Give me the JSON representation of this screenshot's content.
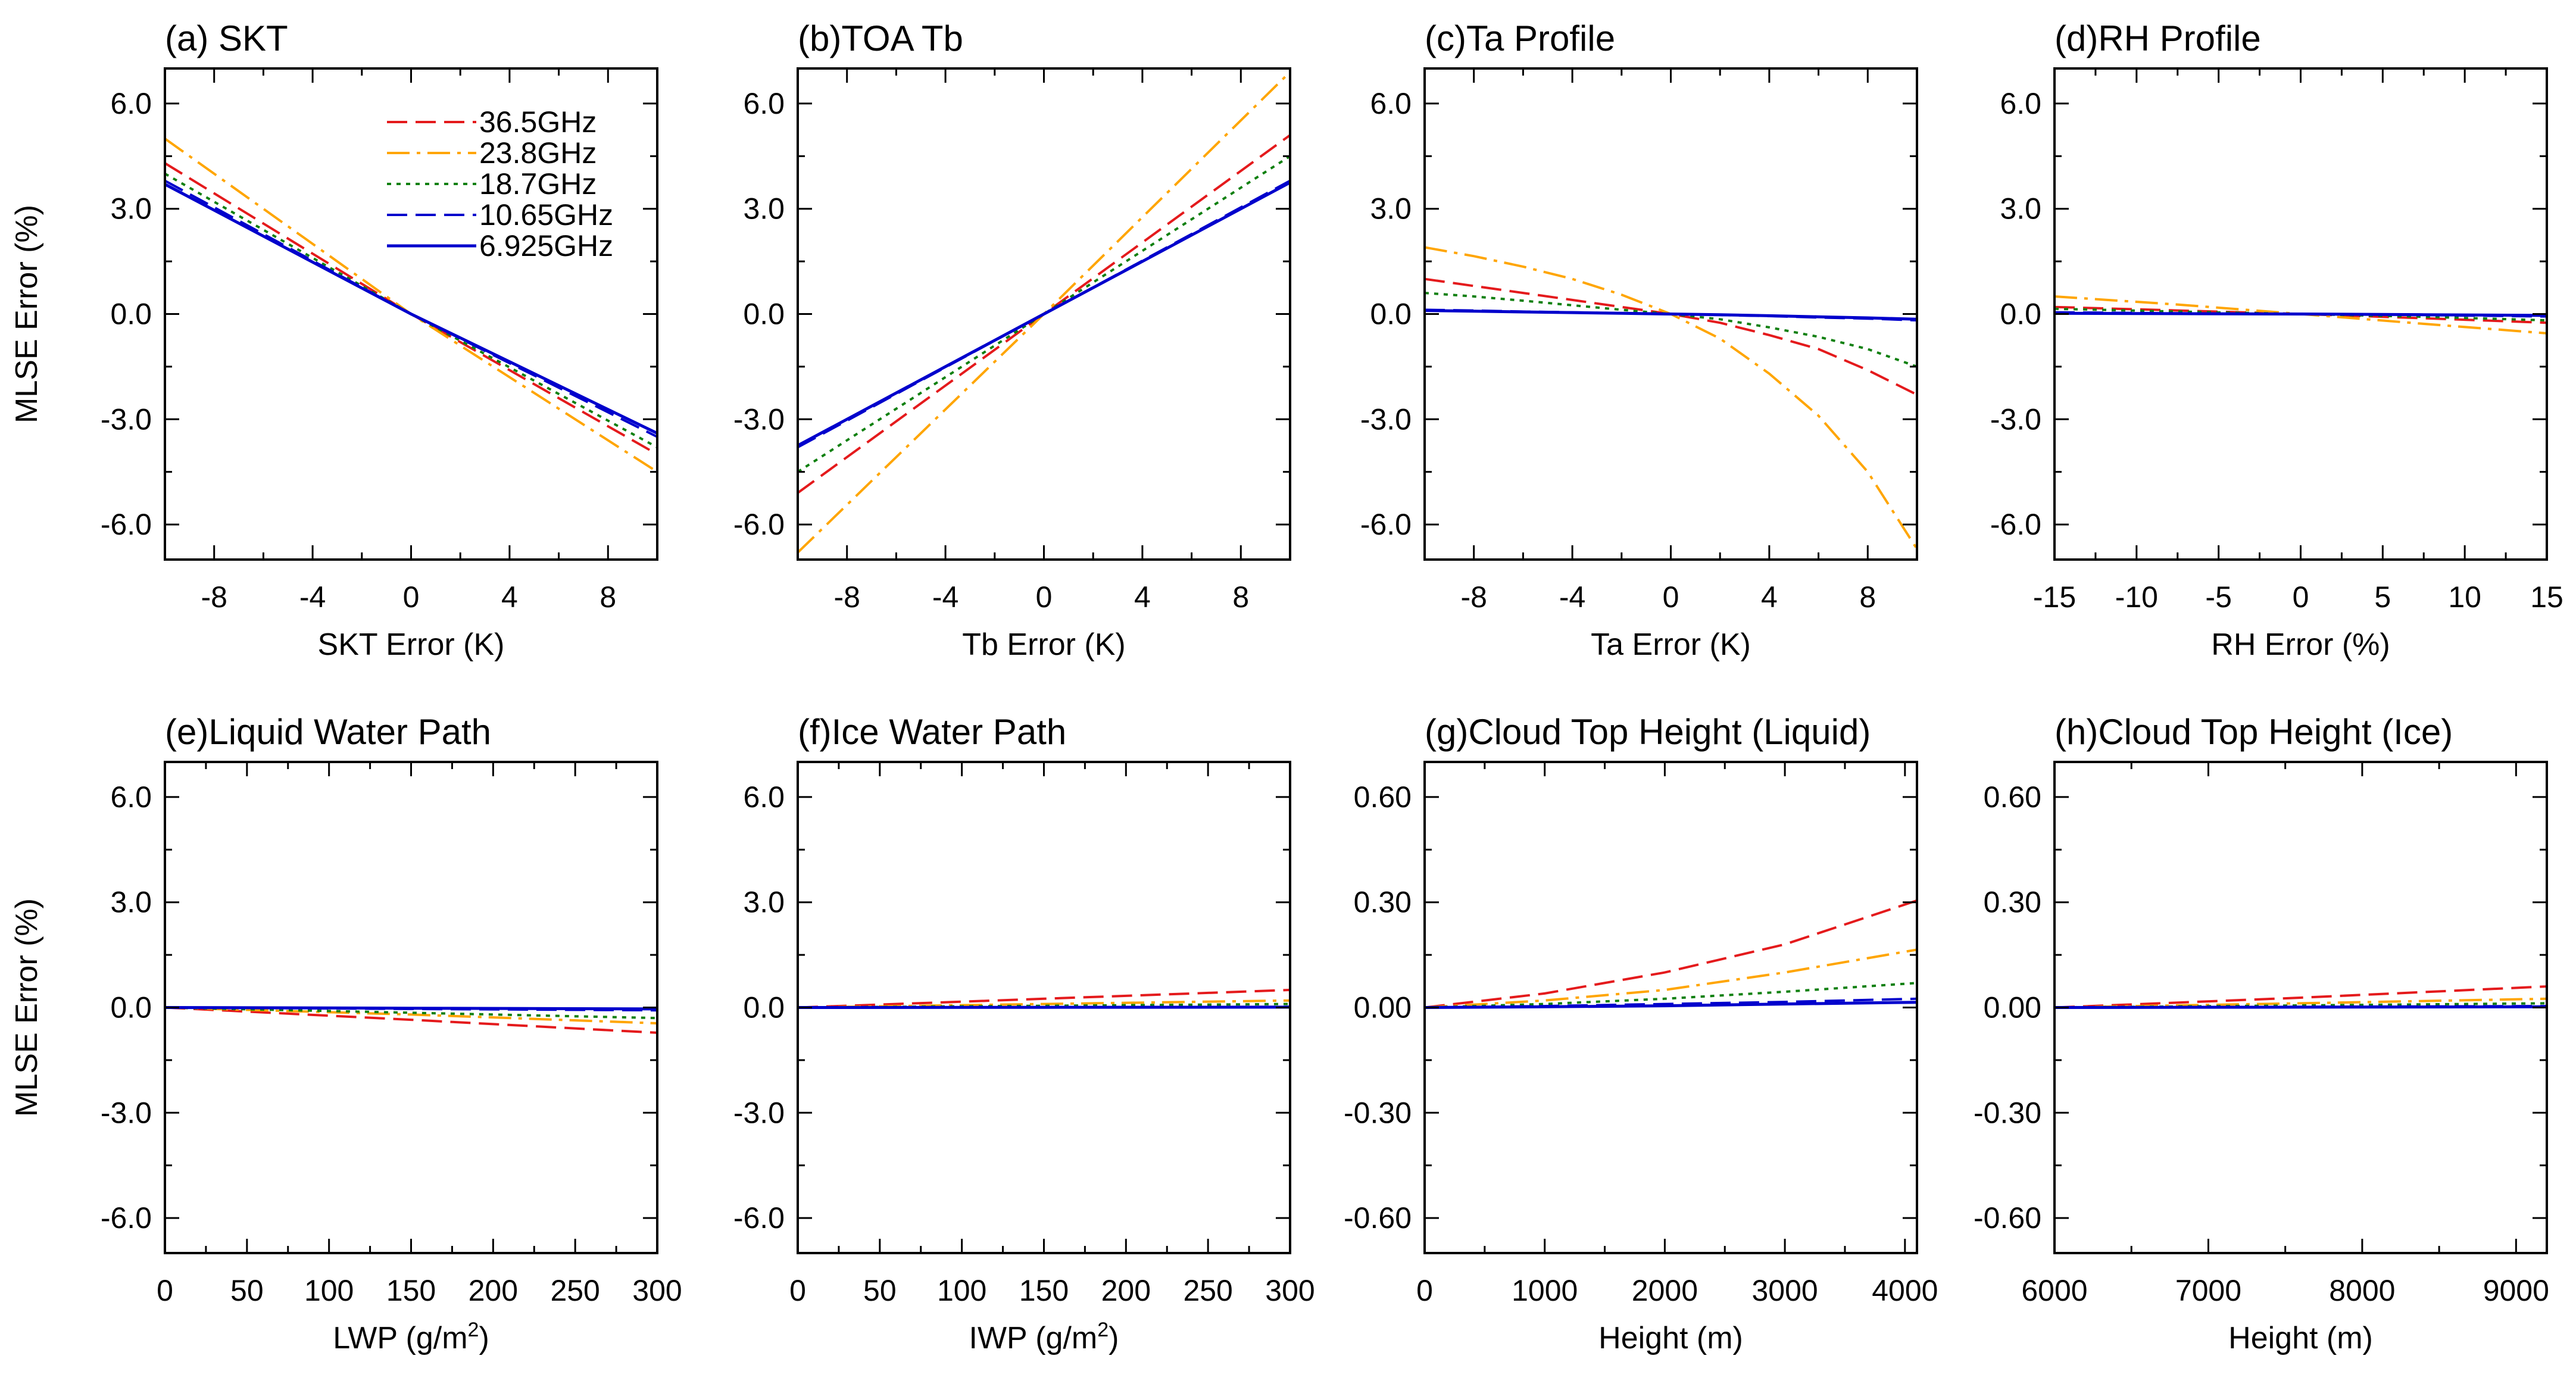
{
  "figure": {
    "legend_panel": "a",
    "legend_location": "top-right"
  },
  "series_styles": [
    {
      "name": "36.5GHz",
      "color": "#e41a1c",
      "dash": "dash"
    },
    {
      "name": "23.8GHz",
      "color": "#ffa500",
      "dash": "dashdot"
    },
    {
      "name": "18.7GHz",
      "color": "#108010",
      "dash": "dot"
    },
    {
      "name": "10.65GHz",
      "color": "#0000cc",
      "dash": "dash"
    },
    {
      "name": "6.925GHz",
      "color": "#0000cc",
      "dash": "solid"
    }
  ],
  "chart_data": [
    {
      "type": "line",
      "panel": "a",
      "title": "(a) SKT",
      "xlabel": "SKT Error (K)",
      "ylabel": "MLSE Error (%)",
      "xlim": [
        -10,
        10
      ],
      "ylim": [
        -7,
        7
      ],
      "xticks": [
        -8,
        -4,
        0,
        4,
        8
      ],
      "xtick_labels": [
        "-8",
        "-4",
        "0",
        "4",
        "8"
      ],
      "yticks": [
        -6,
        -3,
        0,
        3,
        6
      ],
      "ytick_labels": [
        "-6.0",
        "-3.0",
        "0.0",
        "3.0",
        "6.0"
      ],
      "x": [
        -10,
        0,
        10
      ],
      "series": [
        {
          "name": "36.5GHz",
          "values": [
            4.3,
            0,
            -4.0
          ]
        },
        {
          "name": "23.8GHz",
          "values": [
            5.0,
            0,
            -4.5
          ]
        },
        {
          "name": "18.7GHz",
          "values": [
            4.0,
            0,
            -3.8
          ]
        },
        {
          "name": "10.65GHz",
          "values": [
            3.8,
            0,
            -3.5
          ]
        },
        {
          "name": "6.925GHz",
          "values": [
            3.7,
            0,
            -3.4
          ]
        }
      ]
    },
    {
      "type": "line",
      "panel": "b",
      "title": "(b)TOA Tb",
      "xlabel": "Tb Error (K)",
      "ylabel": "",
      "xlim": [
        -10,
        10
      ],
      "ylim": [
        -7,
        7
      ],
      "xticks": [
        -8,
        -4,
        0,
        4,
        8
      ],
      "xtick_labels": [
        "-8",
        "-4",
        "0",
        "4",
        "8"
      ],
      "yticks": [
        -6,
        -3,
        0,
        3,
        6
      ],
      "ytick_labels": [
        "-6.0",
        "-3.0",
        "0.0",
        "3.0",
        "6.0"
      ],
      "x": [
        -10,
        0,
        10
      ],
      "series": [
        {
          "name": "36.5GHz",
          "values": [
            -5.1,
            0,
            5.1
          ]
        },
        {
          "name": "23.8GHz",
          "values": [
            -6.8,
            0,
            6.9
          ]
        },
        {
          "name": "18.7GHz",
          "values": [
            -4.5,
            0,
            4.5
          ]
        },
        {
          "name": "10.65GHz",
          "values": [
            -3.8,
            0,
            3.8
          ]
        },
        {
          "name": "6.925GHz",
          "values": [
            -3.75,
            0,
            3.75
          ]
        }
      ]
    },
    {
      "type": "line",
      "panel": "c",
      "title": "(c)Ta Profile",
      "xlabel": "Ta Error (K)",
      "ylabel": "",
      "xlim": [
        -10,
        10
      ],
      "ylim": [
        -7,
        7
      ],
      "xticks": [
        -8,
        -4,
        0,
        4,
        8
      ],
      "xtick_labels": [
        "-8",
        "-4",
        "0",
        "4",
        "8"
      ],
      "yticks": [
        -6,
        -3,
        0,
        3,
        6
      ],
      "ytick_labels": [
        "-6.0",
        "-3.0",
        "0.0",
        "3.0",
        "6.0"
      ],
      "x": [
        -10,
        -8,
        -6,
        -4,
        -2,
        0,
        2,
        4,
        6,
        8,
        10
      ],
      "series": [
        {
          "name": "36.5GHz",
          "values": [
            1.0,
            0.8,
            0.6,
            0.4,
            0.2,
            0,
            -0.25,
            -0.6,
            -1.0,
            -1.6,
            -2.3
          ]
        },
        {
          "name": "23.8GHz",
          "values": [
            1.9,
            1.65,
            1.35,
            1.0,
            0.55,
            0,
            -0.7,
            -1.7,
            -2.9,
            -4.5,
            -6.7
          ]
        },
        {
          "name": "18.7GHz",
          "values": [
            0.6,
            0.5,
            0.38,
            0.25,
            0.12,
            0,
            -0.15,
            -0.38,
            -0.65,
            -1.0,
            -1.5
          ]
        },
        {
          "name": "10.65GHz",
          "values": [
            0.12,
            0.1,
            0.07,
            0.05,
            0.02,
            0,
            -0.03,
            -0.06,
            -0.1,
            -0.13,
            -0.18
          ]
        },
        {
          "name": "6.925GHz",
          "values": [
            0.1,
            0.08,
            0.06,
            0.04,
            0.02,
            0,
            -0.02,
            -0.05,
            -0.08,
            -0.11,
            -0.15
          ]
        }
      ]
    },
    {
      "type": "line",
      "panel": "d",
      "title": "(d)RH Profile",
      "xlabel": "RH Error (%)",
      "ylabel": "",
      "xlim": [
        -15,
        15
      ],
      "ylim": [
        -7,
        7
      ],
      "xticks": [
        -15,
        -10,
        -5,
        0,
        5,
        10,
        15
      ],
      "xtick_labels": [
        "-15",
        "-10",
        "-5",
        "0",
        "5",
        "10",
        "15"
      ],
      "yticks": [
        -6,
        -3,
        0,
        3,
        6
      ],
      "ytick_labels": [
        "-6.0",
        "-3.0",
        "0.0",
        "3.0",
        "6.0"
      ],
      "x": [
        -15,
        -7.5,
        0,
        7.5,
        15
      ],
      "series": [
        {
          "name": "36.5GHz",
          "values": [
            0.2,
            0.1,
            0,
            -0.12,
            -0.25
          ]
        },
        {
          "name": "23.8GHz",
          "values": [
            0.5,
            0.27,
            0,
            -0.28,
            -0.55
          ]
        },
        {
          "name": "18.7GHz",
          "values": [
            0.15,
            0.07,
            0,
            -0.08,
            -0.18
          ]
        },
        {
          "name": "10.65GHz",
          "values": [
            0.05,
            0.02,
            0,
            -0.03,
            -0.07
          ]
        },
        {
          "name": "6.925GHz",
          "values": [
            0.02,
            0.01,
            0,
            -0.02,
            -0.04
          ]
        }
      ]
    },
    {
      "type": "line",
      "panel": "e",
      "title": "(e)Liquid Water Path",
      "xlabel": "LWP (g/m",
      "xlabel_sup": "2",
      "xlabel_tail": ")",
      "ylabel": "MLSE Error (%)",
      "xlim": [
        0,
        300
      ],
      "ylim": [
        -7,
        7
      ],
      "xticks": [
        0,
        50,
        100,
        150,
        200,
        250,
        300
      ],
      "xtick_labels": [
        "0",
        "50",
        "100",
        "150",
        "200",
        "250",
        "300"
      ],
      "yticks": [
        -6,
        -3,
        0,
        3,
        6
      ],
      "ytick_labels": [
        "-6.0",
        "-3.0",
        "0.0",
        "3.0",
        "6.0"
      ],
      "x": [
        0,
        150,
        300
      ],
      "series": [
        {
          "name": "36.5GHz",
          "values": [
            0,
            -0.35,
            -0.72
          ]
        },
        {
          "name": "23.8GHz",
          "values": [
            0,
            -0.2,
            -0.45
          ]
        },
        {
          "name": "18.7GHz",
          "values": [
            0,
            -0.15,
            -0.3
          ]
        },
        {
          "name": "10.65GHz",
          "values": [
            0,
            -0.04,
            -0.08
          ]
        },
        {
          "name": "6.925GHz",
          "values": [
            0,
            -0.02,
            -0.04
          ]
        }
      ]
    },
    {
      "type": "line",
      "panel": "f",
      "title": "(f)Ice Water Path",
      "xlabel": "IWP (g/m",
      "xlabel_sup": "2",
      "xlabel_tail": ")",
      "ylabel": "",
      "xlim": [
        0,
        300
      ],
      "ylim": [
        -7,
        7
      ],
      "xticks": [
        0,
        50,
        100,
        150,
        200,
        250,
        300
      ],
      "xtick_labels": [
        "0",
        "50",
        "100",
        "150",
        "200",
        "250",
        "300"
      ],
      "yticks": [
        -6,
        -3,
        0,
        3,
        6
      ],
      "ytick_labels": [
        "-6.0",
        "-3.0",
        "0.0",
        "3.0",
        "6.0"
      ],
      "x": [
        0,
        150,
        300
      ],
      "series": [
        {
          "name": "36.5GHz",
          "values": [
            0,
            0.25,
            0.5
          ]
        },
        {
          "name": "23.8GHz",
          "values": [
            0,
            0.1,
            0.2
          ]
        },
        {
          "name": "18.7GHz",
          "values": [
            0,
            0.05,
            0.1
          ]
        },
        {
          "name": "10.65GHz",
          "values": [
            0,
            0.01,
            0.02
          ]
        },
        {
          "name": "6.925GHz",
          "values": [
            0,
            0.005,
            0.01
          ]
        }
      ]
    },
    {
      "type": "line",
      "panel": "g",
      "title": "(g)Cloud Top Height (Liquid)",
      "xlabel": "Height (m)",
      "ylabel": "",
      "xlim": [
        0,
        4100
      ],
      "ylim": [
        -0.7,
        0.7
      ],
      "xticks": [
        0,
        1000,
        2000,
        3000,
        4000
      ],
      "xtick_labels": [
        "0",
        "1000",
        "2000",
        "3000",
        "4000"
      ],
      "yticks": [
        -0.6,
        -0.3,
        0,
        0.3,
        0.6
      ],
      "ytick_labels": [
        "-0.60",
        "-0.30",
        "0.00",
        "0.30",
        "0.60"
      ],
      "x": [
        0,
        1000,
        2000,
        3000,
        4100
      ],
      "series": [
        {
          "name": "36.5GHz",
          "values": [
            0,
            0.04,
            0.1,
            0.18,
            0.305
          ]
        },
        {
          "name": "23.8GHz",
          "values": [
            0,
            0.02,
            0.05,
            0.1,
            0.165
          ]
        },
        {
          "name": "18.7GHz",
          "values": [
            0,
            0.01,
            0.025,
            0.045,
            0.07
          ]
        },
        {
          "name": "10.65GHz",
          "values": [
            0,
            0.004,
            0.01,
            0.016,
            0.025
          ]
        },
        {
          "name": "6.925GHz",
          "values": [
            0,
            0.002,
            0.005,
            0.01,
            0.015
          ]
        }
      ]
    },
    {
      "type": "line",
      "panel": "h",
      "title": "(h)Cloud Top Height (Ice)",
      "xlabel": "Height (m)",
      "ylabel": "",
      "xlim": [
        6000,
        9200
      ],
      "ylim": [
        -0.7,
        0.7
      ],
      "xticks": [
        6000,
        7000,
        8000,
        9000
      ],
      "xtick_labels": [
        "6000",
        "7000",
        "8000",
        "9000"
      ],
      "yticks": [
        -0.6,
        -0.3,
        0,
        0.3,
        0.6
      ],
      "ytick_labels": [
        "-0.60",
        "-0.30",
        "0.00",
        "0.30",
        "0.60"
      ],
      "x": [
        6000,
        7600,
        9200
      ],
      "series": [
        {
          "name": "36.5GHz",
          "values": [
            0,
            0.028,
            0.06
          ]
        },
        {
          "name": "23.8GHz",
          "values": [
            0,
            0.012,
            0.025
          ]
        },
        {
          "name": "18.7GHz",
          "values": [
            0,
            0.006,
            0.012
          ]
        },
        {
          "name": "10.65GHz",
          "values": [
            0,
            0.002,
            0.004
          ]
        },
        {
          "name": "6.925GHz",
          "values": [
            0,
            0.001,
            0.002
          ]
        }
      ]
    }
  ]
}
